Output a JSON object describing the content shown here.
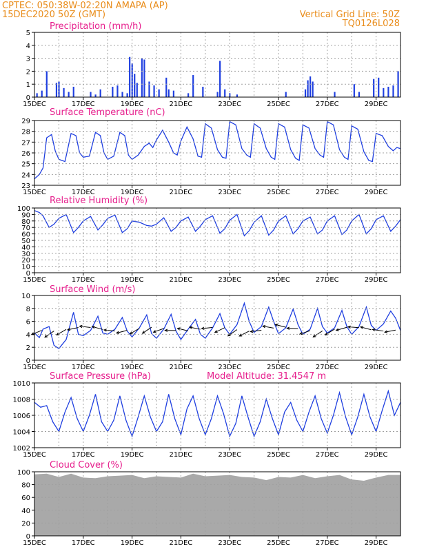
{
  "header": {
    "left_line1": "CPTEC:    050:38W-02:20N   AMAPA (AP)",
    "left_line2": "15DEC2020 50Z (GMT)",
    "right_line1": "Vertical Grid Line: 50Z",
    "right_line2": "TQ0126L028",
    "header_color": "#e98c1a",
    "title_color": "#e61e8c",
    "series_color": "#1f3fe0",
    "cloud_color": "#a9a9a9"
  },
  "x_ticks": [
    "15DEC",
    "17DEC",
    "19DEC",
    "21DEC",
    "23DEC",
    "25DEC",
    "27DEC",
    "29DEC"
  ],
  "x_tick_days": [
    0,
    2,
    4,
    6,
    8,
    10,
    12,
    14
  ],
  "x_days_total": 15,
  "panels": {
    "precip": {
      "title": "Precipitation (mm/h)",
      "yticks": [
        "0",
        "1",
        "2",
        "3",
        "4",
        "5"
      ]
    },
    "temp": {
      "title": "Surface Temperature (nC)",
      "yticks": [
        "23",
        "24",
        "25",
        "26",
        "27",
        "28",
        "29"
      ]
    },
    "rh": {
      "title": "Relative Humidity (%)",
      "yticks": [
        "0",
        "10",
        "20",
        "30",
        "40",
        "50",
        "60",
        "70",
        "80",
        "90",
        "100"
      ]
    },
    "wind": {
      "title": "Surface Wind (m/s)",
      "yticks": [
        "0",
        "2",
        "4",
        "6",
        "8",
        "10"
      ]
    },
    "pres": {
      "title": "Surface Pressure (hPa)",
      "extra": "Model Altitude: 31.4547 m",
      "yticks": [
        "1002",
        "1004",
        "1006",
        "1008",
        "1010"
      ]
    },
    "cloud": {
      "title": "Cloud Cover (%)",
      "yticks": [
        "0",
        "20",
        "40",
        "60",
        "80",
        "100"
      ]
    }
  },
  "chart_data": [
    {
      "type": "bar",
      "title": "Precipitation (mm/h)",
      "ylim": [
        0,
        5
      ],
      "x_unit": "days since 15DEC",
      "x": [
        0.1,
        0.3,
        0.5,
        0.9,
        1.0,
        1.2,
        1.4,
        1.6,
        2.3,
        2.5,
        2.7,
        3.2,
        3.4,
        3.6,
        3.8,
        3.9,
        4.0,
        4.1,
        4.2,
        4.4,
        4.5,
        4.7,
        4.9,
        5.1,
        5.4,
        5.5,
        5.7,
        6.3,
        6.5,
        6.9,
        7.5,
        7.6,
        7.8,
        8.0,
        8.3,
        10.3,
        11.1,
        11.2,
        11.3,
        11.4,
        12.3,
        13.1,
        13.3,
        13.9,
        14.1,
        14.3,
        14.5,
        14.7,
        14.9
      ],
      "values": [
        0.3,
        0.5,
        2.0,
        1.1,
        1.2,
        0.7,
        0.4,
        0.8,
        0.4,
        0.2,
        0.6,
        0.8,
        0.9,
        0.4,
        0.3,
        3.1,
        2.6,
        1.8,
        1.1,
        3.0,
        2.9,
        1.2,
        0.9,
        0.6,
        1.5,
        0.6,
        0.5,
        0.3,
        1.7,
        0.8,
        0.4,
        2.8,
        0.6,
        0.3,
        0.2,
        0.4,
        0.6,
        1.3,
        1.6,
        1.2,
        0.4,
        1.0,
        0.4,
        1.4,
        1.5,
        0.7,
        0.8,
        0.9,
        2.0
      ]
    },
    {
      "type": "line",
      "title": "Surface Temperature (nC)",
      "ylim": [
        23,
        29
      ],
      "x_unit": "days since 15DEC",
      "x": [
        0,
        0.2,
        0.35,
        0.5,
        0.7,
        0.85,
        1.0,
        1.25,
        1.5,
        1.7,
        1.85,
        2.0,
        2.25,
        2.5,
        2.7,
        2.85,
        3.0,
        3.25,
        3.5,
        3.7,
        3.85,
        4.0,
        4.25,
        4.5,
        4.7,
        4.85,
        5.0,
        5.25,
        5.5,
        5.7,
        5.85,
        6.0,
        6.25,
        6.5,
        6.7,
        6.85,
        7.0,
        7.25,
        7.5,
        7.7,
        7.85,
        8.0,
        8.25,
        8.5,
        8.7,
        8.85,
        9.0,
        9.25,
        9.5,
        9.7,
        9.85,
        10.0,
        10.25,
        10.5,
        10.7,
        10.85,
        11.0,
        11.25,
        11.5,
        11.7,
        11.85,
        12.0,
        12.25,
        12.5,
        12.7,
        12.85,
        13.0,
        13.25,
        13.5,
        13.7,
        13.85,
        14.0,
        14.25,
        14.5,
        14.7,
        14.85,
        15.0
      ],
      "values": [
        23.6,
        24.0,
        24.6,
        27.4,
        27.7,
        26.2,
        25.4,
        25.2,
        27.8,
        27.6,
        26.0,
        25.6,
        25.7,
        27.9,
        27.6,
        26.0,
        25.4,
        25.7,
        27.9,
        27.6,
        25.8,
        25.4,
        25.8,
        26.6,
        26.9,
        26.5,
        27.2,
        28.1,
        27.0,
        26.0,
        25.8,
        27.1,
        28.4,
        27.3,
        25.7,
        25.6,
        28.7,
        28.3,
        26.3,
        25.6,
        25.5,
        28.9,
        28.6,
        26.4,
        25.8,
        25.6,
        28.7,
        28.3,
        26.4,
        25.6,
        25.4,
        28.7,
        28.4,
        26.3,
        25.5,
        25.3,
        28.6,
        28.3,
        26.4,
        25.8,
        25.6,
        28.9,
        28.6,
        26.3,
        25.6,
        25.4,
        28.5,
        28.2,
        26.1,
        25.3,
        25.2,
        27.8,
        27.6,
        26.6,
        26.2,
        26.5,
        26.4
      ]
    },
    {
      "type": "line",
      "title": "Relative Humidity (%)",
      "ylim": [
        0,
        100
      ],
      "x_unit": "days since 15DEC",
      "x": [
        0,
        0.2,
        0.35,
        0.6,
        0.8,
        1.0,
        1.3,
        1.6,
        1.8,
        2.0,
        2.3,
        2.6,
        2.8,
        3.0,
        3.3,
        3.6,
        3.8,
        4.0,
        4.3,
        4.6,
        4.8,
        5.0,
        5.3,
        5.6,
        5.8,
        6.0,
        6.3,
        6.6,
        6.8,
        7.0,
        7.3,
        7.6,
        7.8,
        8.0,
        8.3,
        8.6,
        8.8,
        9.0,
        9.3,
        9.6,
        9.8,
        10.0,
        10.3,
        10.6,
        10.8,
        11.0,
        11.3,
        11.6,
        11.8,
        12.0,
        12.3,
        12.6,
        12.8,
        13.0,
        13.3,
        13.6,
        13.8,
        14.0,
        14.3,
        14.6,
        14.8,
        15.0
      ],
      "values": [
        96,
        93,
        88,
        70,
        75,
        84,
        90,
        62,
        70,
        80,
        87,
        66,
        74,
        84,
        89,
        62,
        68,
        80,
        78,
        73,
        72,
        75,
        85,
        64,
        70,
        80,
        86,
        64,
        72,
        82,
        88,
        61,
        68,
        81,
        90,
        57,
        65,
        78,
        88,
        58,
        66,
        80,
        88,
        60,
        68,
        80,
        86,
        60,
        66,
        80,
        88,
        59,
        66,
        80,
        90,
        60,
        68,
        82,
        88,
        64,
        72,
        82
      ]
    },
    {
      "type": "line",
      "title": "Surface Wind (m/s)",
      "ylim": [
        0,
        10
      ],
      "x_unit": "days since 15DEC",
      "x": [
        0,
        0.2,
        0.35,
        0.6,
        0.8,
        1.0,
        1.3,
        1.6,
        1.8,
        2.0,
        2.3,
        2.6,
        2.8,
        3.0,
        3.3,
        3.6,
        3.8,
        4.0,
        4.3,
        4.6,
        4.8,
        5.0,
        5.3,
        5.6,
        5.8,
        6.0,
        6.3,
        6.6,
        6.8,
        7.0,
        7.3,
        7.6,
        7.8,
        8.0,
        8.3,
        8.6,
        8.8,
        9.0,
        9.3,
        9.6,
        9.8,
        10.0,
        10.3,
        10.6,
        10.8,
        11.0,
        11.3,
        11.6,
        11.8,
        12.0,
        12.3,
        12.6,
        12.8,
        13.0,
        13.3,
        13.6,
        13.8,
        14.0,
        14.3,
        14.6,
        14.8,
        15.0
      ],
      "values": [
        4.2,
        3.5,
        4.8,
        5.2,
        2.3,
        1.8,
        3.2,
        7.4,
        4.0,
        3.8,
        4.6,
        6.8,
        4.2,
        4.0,
        4.8,
        6.6,
        4.5,
        3.6,
        5.0,
        7.0,
        4.1,
        3.4,
        4.8,
        7.1,
        4.5,
        3.2,
        4.8,
        6.3,
        4.0,
        3.4,
        5.0,
        7.2,
        5.0,
        4.0,
        5.5,
        8.8,
        6.0,
        4.3,
        5.2,
        8.2,
        6.0,
        4.1,
        5.0,
        7.9,
        5.5,
        4.0,
        4.8,
        8.0,
        5.2,
        4.2,
        5.0,
        7.7,
        5.2,
        4.0,
        5.2,
        8.2,
        5.4,
        4.6,
        5.6,
        7.6,
        6.5,
        4.6
      ]
    },
    {
      "type": "line",
      "title": "Surface Pressure (hPa)",
      "ylim": [
        1002,
        1010
      ],
      "x_unit": "days since 15DEC",
      "x": [
        0,
        0.25,
        0.5,
        0.75,
        1.0,
        1.25,
        1.5,
        1.75,
        2.0,
        2.25,
        2.5,
        2.75,
        3.0,
        3.25,
        3.5,
        3.75,
        4.0,
        4.25,
        4.5,
        4.75,
        5.0,
        5.25,
        5.5,
        5.75,
        6.0,
        6.25,
        6.5,
        6.75,
        7.0,
        7.25,
        7.5,
        7.75,
        8.0,
        8.25,
        8.5,
        8.75,
        9.0,
        9.25,
        9.5,
        9.75,
        10.0,
        10.25,
        10.5,
        10.75,
        11.0,
        11.25,
        11.5,
        11.75,
        12.0,
        12.25,
        12.5,
        12.75,
        13.0,
        13.25,
        13.5,
        13.75,
        14.0,
        14.25,
        14.5,
        14.75,
        15.0
      ],
      "values": [
        1007.6,
        1007.0,
        1007.2,
        1005.2,
        1004.0,
        1006.4,
        1008.2,
        1005.6,
        1004.0,
        1006.0,
        1008.6,
        1005.2,
        1004.0,
        1005.4,
        1008.4,
        1005.4,
        1003.4,
        1005.8,
        1008.4,
        1005.8,
        1004.0,
        1005.2,
        1008.6,
        1005.6,
        1003.6,
        1006.8,
        1008.4,
        1005.6,
        1003.6,
        1005.6,
        1008.4,
        1006.2,
        1003.4,
        1005.0,
        1008.4,
        1005.8,
        1003.4,
        1005.2,
        1008.0,
        1005.6,
        1003.6,
        1006.4,
        1007.6,
        1005.4,
        1004.0,
        1006.4,
        1008.4,
        1005.6,
        1003.8,
        1006.0,
        1008.8,
        1005.8,
        1003.6,
        1005.8,
        1008.6,
        1005.8,
        1004.0,
        1006.6,
        1009.0,
        1006.0,
        1007.6
      ]
    },
    {
      "type": "bar",
      "title": "Cloud Cover (%)",
      "ylim": [
        0,
        100
      ],
      "x_unit": "days since 15DEC",
      "x": [
        0,
        0.5,
        1.0,
        1.5,
        2.0,
        2.5,
        3.0,
        3.5,
        4.0,
        4.5,
        5.0,
        5.5,
        6.0,
        6.5,
        7.0,
        7.5,
        8.0,
        8.5,
        9.0,
        9.5,
        10.0,
        10.5,
        11.0,
        11.5,
        12.0,
        12.5,
        13.0,
        13.5,
        14.0,
        14.5
      ],
      "values": [
        96,
        97,
        92,
        97,
        91,
        90,
        93,
        94,
        95,
        90,
        93,
        92,
        91,
        97,
        93,
        94,
        95,
        92,
        91,
        87,
        92,
        91,
        95,
        90,
        93,
        95,
        88,
        86,
        91,
        95
      ]
    }
  ]
}
